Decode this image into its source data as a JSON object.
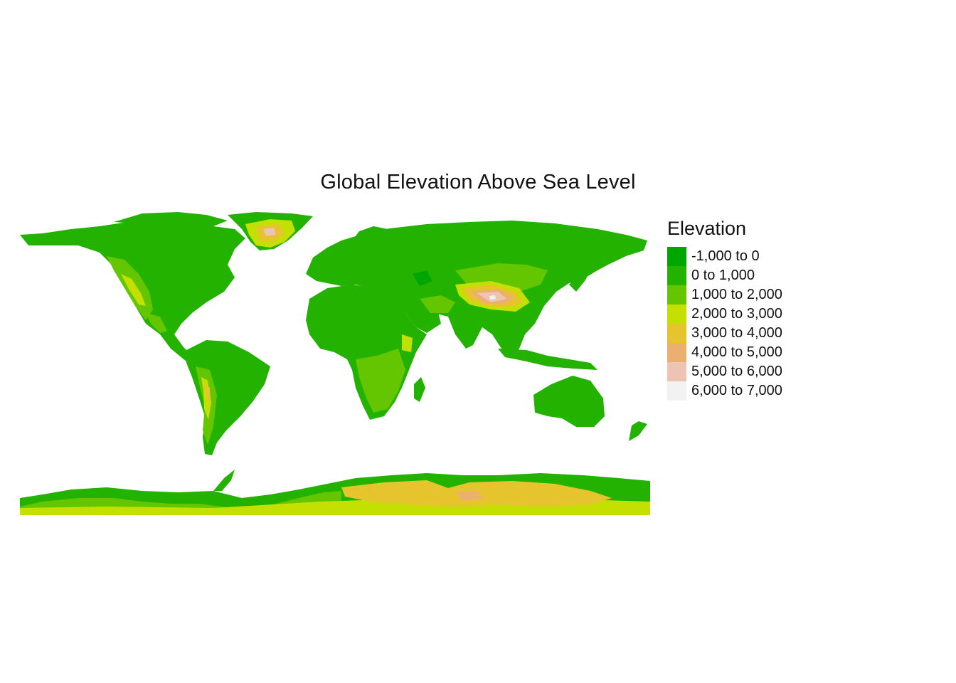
{
  "title": "Global Elevation Above Sea Level",
  "legend": {
    "title": "Elevation",
    "items": [
      {
        "label": "-1,000 to 0",
        "color": "#00A600"
      },
      {
        "label": "0 to 1,000",
        "color": "#23B200"
      },
      {
        "label": "1,000 to 2,000",
        "color": "#63C600"
      },
      {
        "label": "2,000 to 3,000",
        "color": "#C4E000"
      },
      {
        "label": "3,000 to 4,000",
        "color": "#E6C42E"
      },
      {
        "label": "4,000 to 5,000",
        "color": "#EBB06F"
      },
      {
        "label": "5,000 to 6,000",
        "color": "#EDC3B4"
      },
      {
        "label": "6,000 to 7,000",
        "color": "#F2F2F2"
      }
    ]
  },
  "map": {
    "background": "#ffffff",
    "land_default_class": "0 to 1,000"
  }
}
